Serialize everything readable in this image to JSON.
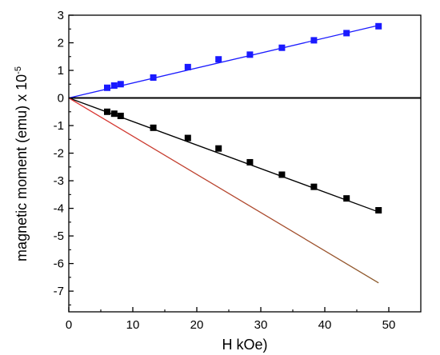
{
  "chart_data": {
    "type": "scatter",
    "xlabel": "H kOe)",
    "ylabel": "magnetic moment (emu) x 10",
    "ylabel_exponent": "-5",
    "xlim": [
      0,
      55
    ],
    "ylim": [
      -7.75,
      3
    ],
    "xticks": [
      0,
      10,
      20,
      30,
      40,
      50
    ],
    "yticks": [
      3,
      2,
      1,
      0,
      -1,
      -2,
      -3,
      -4,
      -5,
      -6,
      -7
    ],
    "grid": false,
    "legend": "none",
    "zero_line": true,
    "series": [
      {
        "color": "#1a1aff",
        "marker": "square",
        "x": [
          6,
          7.1,
          8.1,
          13.2,
          18.6,
          23.4,
          28.3,
          33.3,
          38.3,
          43.4,
          48.4
        ],
        "y": [
          0.37,
          0.45,
          0.5,
          0.74,
          1.12,
          1.4,
          1.57,
          1.82,
          2.09,
          2.35,
          2.6
        ],
        "fit_line": {
          "x": [
            0,
            48.4
          ],
          "y": [
            0,
            2.63
          ]
        }
      },
      {
        "color": "#000000",
        "marker": "square",
        "x": [
          6,
          7.1,
          8.1,
          13.2,
          18.6,
          23.4,
          28.3,
          33.3,
          38.3,
          43.4,
          48.4
        ],
        "y": [
          -0.5,
          -0.57,
          -0.65,
          -1.08,
          -1.45,
          -1.83,
          -2.33,
          -2.78,
          -3.22,
          -3.64,
          -4.07
        ],
        "fit_line": {
          "x": [
            0,
            48.4
          ],
          "y": [
            0,
            -4.13
          ]
        }
      },
      {
        "color": "#e03030",
        "color_end": "#8b5a2b",
        "marker": "none",
        "x": [
          0,
          48.4
        ],
        "y": [
          0,
          -6.7
        ]
      }
    ]
  }
}
